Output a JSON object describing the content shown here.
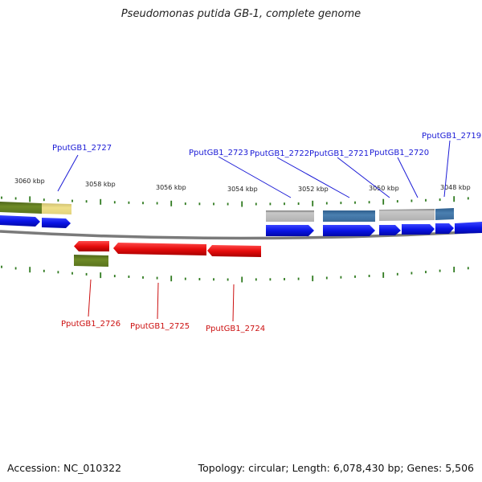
{
  "title": "Pseudomonas putida GB-1, complete genome",
  "footer": {
    "accession": "Accession: NC_010322",
    "topology": "Topology: circular; Length: 6,078,430 bp; Genes: 5,506"
  },
  "colors": {
    "forward_cds": "#0a14e6",
    "reverse_cds": "#e60c0c",
    "gene_gray": "#b8b8b8",
    "gene_steel": "#4a7fb0",
    "gene_olive": "#6e8a26",
    "gene_yellow": "#efe08a",
    "backbone": "#8a8a8a",
    "tick": "#2f7a1f",
    "label_forward": "#1a1ad6",
    "label_reverse": "#cc1010"
  },
  "scale_labels": [
    "3060 kbp",
    "3058 kbp",
    "3056 kbp",
    "3054 kbp",
    "3052 kbp",
    "3050 kbp",
    "3048 kbp"
  ],
  "genes_top": [
    {
      "id": "PputGB1_2727"
    },
    {
      "id": "PputGB1_2723"
    },
    {
      "id": "PputGB1_2722"
    },
    {
      "id": "PputGB1_2721"
    },
    {
      "id": "PputGB1_2720"
    },
    {
      "id": "PputGB1_2719"
    }
  ],
  "genes_bottom": [
    {
      "id": "PputGB1_2726"
    },
    {
      "id": "PputGB1_2725"
    },
    {
      "id": "PputGB1_2724"
    }
  ]
}
